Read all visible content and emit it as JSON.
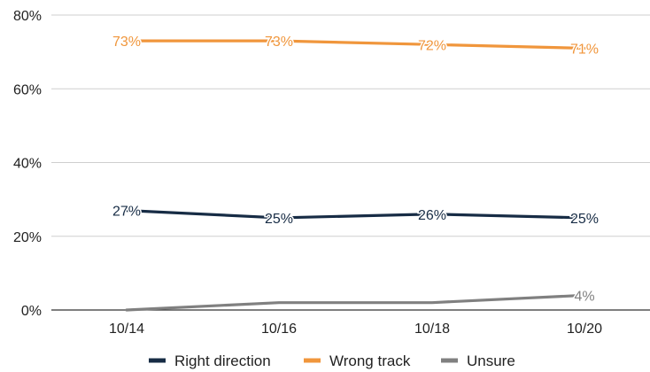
{
  "chart_data": {
    "type": "line",
    "title": "",
    "xlabel": "",
    "ylabel": "",
    "x": [
      "10/14",
      "10/16",
      "10/18",
      "10/20"
    ],
    "ylim": [
      0,
      80
    ],
    "yticks": [
      "0%",
      "20%",
      "40%",
      "60%",
      "80%"
    ],
    "grid": true,
    "legend": "bottom",
    "series": [
      {
        "name": "Right direction",
        "color": "#172c45",
        "values": [
          27,
          25,
          26,
          25
        ],
        "labels": [
          "27%",
          "25%",
          "26%",
          "25%"
        ]
      },
      {
        "name": "Wrong track",
        "color": "#f0963c",
        "values": [
          73,
          73,
          72,
          71
        ],
        "labels": [
          "73%",
          "73%",
          "72%",
          "71%"
        ]
      },
      {
        "name": "Unsure",
        "color": "#808080",
        "values": [
          0,
          2,
          2,
          4
        ],
        "labels": [
          null,
          null,
          null,
          "4%"
        ]
      }
    ]
  }
}
